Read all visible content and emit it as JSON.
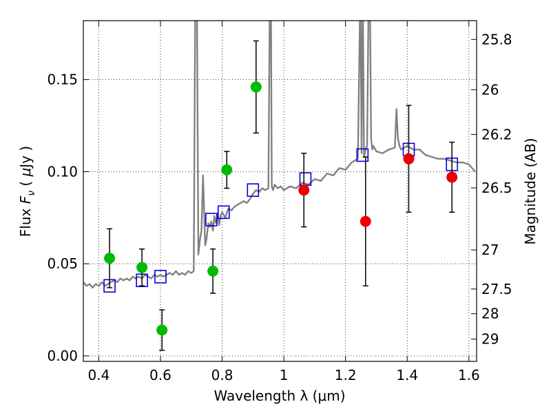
{
  "chart_data": {
    "type": "scatter",
    "xlabel": "Wavelength  λ (μm)",
    "ylabel": "Flux  F_ν  ( μJy )",
    "ylabel_parts": [
      "Flux  ",
      "F",
      "ν",
      "  ( ",
      "μ",
      "Jy )"
    ],
    "y2label": "Magnitude (AB)",
    "xlim": [
      0.35,
      1.625
    ],
    "ylim": [
      -0.003,
      0.182
    ],
    "grid": true,
    "x_ticks": [
      0.4,
      0.6,
      0.8,
      1.0,
      1.2,
      1.4,
      1.6
    ],
    "x_tick_labels": [
      "0.4",
      "0.6",
      "0.8",
      "1",
      "1.2",
      "1.4",
      "1.6"
    ],
    "y_ticks": [
      0.0,
      0.05,
      0.1,
      0.15
    ],
    "y_tick_labels": [
      "0.00",
      "0.05",
      "0.10",
      "0.15"
    ],
    "mag_ticks": [
      {
        "label": "25.8",
        "flux": 0.1718
      },
      {
        "label": "26",
        "flux": 0.1445
      },
      {
        "label": "26.2",
        "flux": 0.1202
      },
      {
        "label": "26.5",
        "flux": 0.0912
      },
      {
        "label": "27",
        "flux": 0.0575
      },
      {
        "label": "27.5",
        "flux": 0.0363
      },
      {
        "label": "28",
        "flux": 0.0229
      },
      {
        "label": "29",
        "flux": 0.0091
      }
    ],
    "series": [
      {
        "color": "#808080",
        "kind": "line",
        "x": [
          0.35,
          0.36,
          0.37,
          0.38,
          0.39,
          0.4,
          0.41,
          0.42,
          0.43,
          0.44,
          0.45,
          0.46,
          0.47,
          0.48,
          0.49,
          0.5,
          0.51,
          0.52,
          0.53,
          0.54,
          0.55,
          0.56,
          0.57,
          0.58,
          0.59,
          0.6,
          0.61,
          0.62,
          0.63,
          0.64,
          0.65,
          0.66,
          0.67,
          0.68,
          0.69,
          0.7,
          0.708,
          0.713,
          0.718,
          0.723,
          0.728,
          0.733,
          0.738,
          0.745,
          0.75,
          0.755,
          0.76,
          0.765,
          0.77,
          0.775,
          0.78,
          0.785,
          0.79,
          0.795,
          0.8,
          0.81,
          0.82,
          0.83,
          0.84,
          0.85,
          0.86,
          0.87,
          0.88,
          0.89,
          0.9,
          0.91,
          0.92,
          0.93,
          0.94,
          0.95,
          0.955,
          0.958,
          0.961,
          0.965,
          0.97,
          0.98,
          0.99,
          1.0,
          1.02,
          1.04,
          1.06,
          1.08,
          1.1,
          1.12,
          1.14,
          1.16,
          1.18,
          1.2,
          1.22,
          1.24,
          1.248,
          1.252,
          1.256,
          1.26,
          1.265,
          1.27,
          1.275,
          1.279,
          1.283,
          1.287,
          1.29,
          1.3,
          1.32,
          1.34,
          1.36,
          1.365,
          1.37,
          1.375,
          1.38,
          1.39,
          1.4,
          1.42,
          1.44,
          1.46,
          1.48,
          1.5,
          1.52,
          1.54,
          1.56,
          1.58,
          1.6,
          1.61,
          1.62
        ],
        "y": [
          0.04,
          0.038,
          0.039,
          0.037,
          0.039,
          0.038,
          0.04,
          0.038,
          0.039,
          0.04,
          0.041,
          0.04,
          0.042,
          0.041,
          0.042,
          0.041,
          0.043,
          0.042,
          0.043,
          0.042,
          0.044,
          0.043,
          0.042,
          0.044,
          0.043,
          0.044,
          0.043,
          0.044,
          0.045,
          0.044,
          0.046,
          0.044,
          0.045,
          0.044,
          0.046,
          0.045,
          0.046,
          0.2,
          0.2,
          0.055,
          0.063,
          0.068,
          0.098,
          0.06,
          0.064,
          0.072,
          0.07,
          0.073,
          0.068,
          0.076,
          0.072,
          0.077,
          0.071,
          0.076,
          0.078,
          0.075,
          0.08,
          0.079,
          0.081,
          0.082,
          0.083,
          0.084,
          0.083,
          0.085,
          0.088,
          0.09,
          0.089,
          0.091,
          0.09,
          0.091,
          0.2,
          0.2,
          0.092,
          0.09,
          0.093,
          0.091,
          0.092,
          0.09,
          0.092,
          0.091,
          0.094,
          0.093,
          0.096,
          0.095,
          0.099,
          0.098,
          0.102,
          0.101,
          0.105,
          0.107,
          0.2,
          0.11,
          0.2,
          0.108,
          0.112,
          0.114,
          0.2,
          0.2,
          0.118,
          0.112,
          0.114,
          0.111,
          0.11,
          0.112,
          0.113,
          0.134,
          0.118,
          0.114,
          0.112,
          0.113,
          0.114,
          0.112,
          0.112,
          0.109,
          0.108,
          0.107,
          0.107,
          0.106,
          0.105,
          0.105,
          0.104,
          0.102,
          0.1
        ]
      },
      {
        "color": "#0000dd",
        "kind": "square",
        "x": [
          0.435,
          0.54,
          0.6,
          0.765,
          0.805,
          0.9,
          1.07,
          1.255,
          1.405,
          1.545
        ],
        "y": [
          0.038,
          0.041,
          0.043,
          0.074,
          0.078,
          0.09,
          0.096,
          0.109,
          0.112,
          0.104
        ]
      },
      {
        "color": "#00bb00",
        "kind": "point",
        "x": [
          0.435,
          0.54,
          0.605,
          0.77,
          0.815,
          0.91
        ],
        "y": [
          0.053,
          0.048,
          0.014,
          0.046,
          0.101,
          0.146
        ],
        "yerr": [
          0.016,
          0.01,
          0.011,
          0.012,
          0.01,
          0.025
        ]
      },
      {
        "color": "#ee0000",
        "kind": "point",
        "x": [
          1.065,
          1.265,
          1.405,
          1.545
        ],
        "y": [
          0.09,
          0.073,
          0.107,
          0.097
        ],
        "yerr": [
          0.02,
          0.035,
          0.029,
          0.019
        ]
      }
    ]
  }
}
